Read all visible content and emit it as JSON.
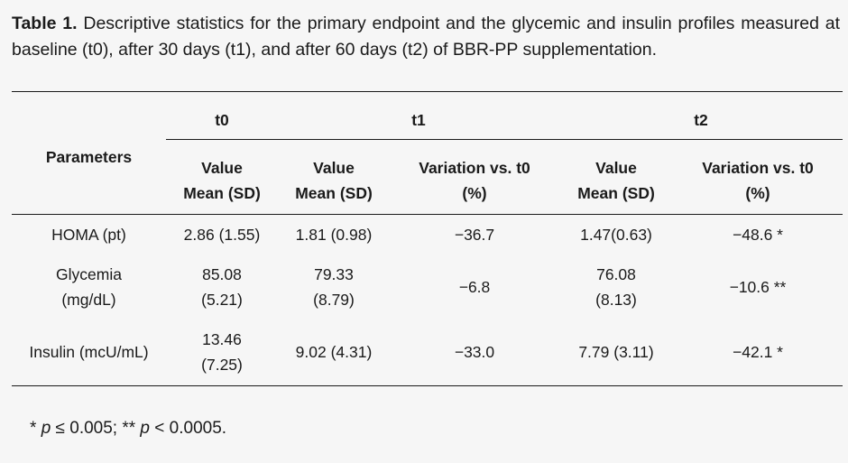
{
  "caption": {
    "label": "Table 1.",
    "text": " Descriptive statistics for the primary endpoint and the glycemic and insulin profiles measured at baseline (t0), after 30 days (t1), and after 60 days (t2) of BBR-PP supplementation."
  },
  "table": {
    "row_header": "Parameters",
    "groups": [
      "t0",
      "t1",
      "t2"
    ],
    "subheaders": [
      [
        "Value",
        "Mean (SD)"
      ],
      [
        "Value",
        "Mean (SD)"
      ],
      [
        "Variation vs. t0",
        "(%)"
      ],
      [
        "Value",
        "Mean (SD)"
      ],
      [
        "Variation vs. t0",
        "(%)"
      ]
    ],
    "rows": [
      {
        "param": [
          "HOMA (pt)"
        ],
        "cells": [
          [
            "2.86 (1.55)"
          ],
          [
            "1.81 (0.98)"
          ],
          [
            "−36.7"
          ],
          [
            "1.47(0.63)"
          ],
          [
            "−48.6 *"
          ]
        ]
      },
      {
        "param": [
          "Glycemia",
          "(mg/dL)"
        ],
        "cells": [
          [
            "85.08",
            "(5.21)"
          ],
          [
            "79.33",
            "(8.79)"
          ],
          [
            "−6.8"
          ],
          [
            "76.08",
            "(8.13)"
          ],
          [
            "−10.6 **"
          ]
        ]
      },
      {
        "param": [
          "Insulin (mcU/mL)"
        ],
        "cells": [
          [
            "13.46",
            "(7.25)"
          ],
          [
            "9.02 (4.31)"
          ],
          [
            "−33.0"
          ],
          [
            "7.79 (3.11)"
          ],
          [
            "−42.1 *"
          ]
        ]
      }
    ]
  },
  "footnote": {
    "pre1": "* ",
    "p1": "p",
    "mid": " ≤ 0.005; ** ",
    "p2": "p",
    "post": " < 0.0005."
  }
}
